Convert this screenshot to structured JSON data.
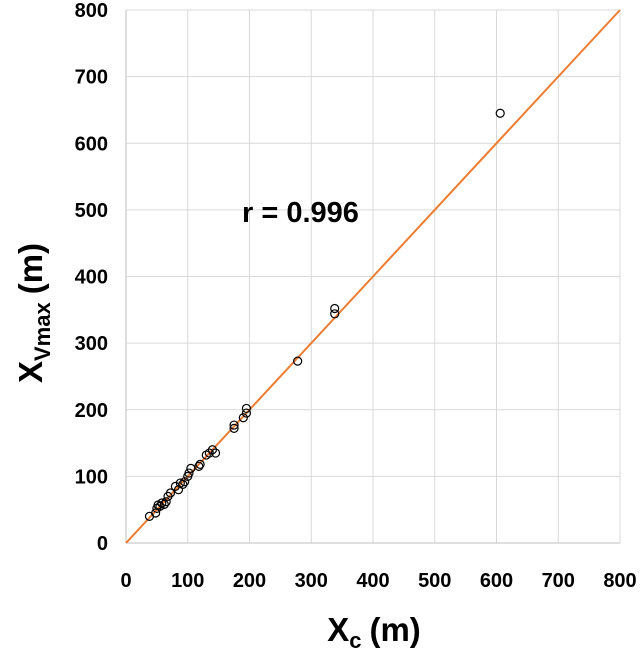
{
  "chart_data": {
    "type": "scatter",
    "xlabel": "X",
    "xlabel_sub": "c",
    "xlabel_unit": "(m)",
    "ylabel": "X",
    "ylabel_sub": "Vmax",
    "ylabel_unit": "(m)",
    "xlim": [
      0,
      800
    ],
    "ylim": [
      0,
      800
    ],
    "xticks": [
      "0",
      "100",
      "200",
      "300",
      "400",
      "500",
      "600",
      "700",
      "800"
    ],
    "yticks": [
      "0",
      "100",
      "200",
      "300",
      "400",
      "500",
      "600",
      "700",
      "800"
    ],
    "grid": true,
    "annotation": "r = 0.996",
    "fit_line": {
      "x": [
        0,
        800
      ],
      "y": [
        0,
        800
      ],
      "color": "#ED7D31"
    },
    "marker_color": "#000000",
    "points": [
      [
        38,
        40
      ],
      [
        48,
        45
      ],
      [
        50,
        52
      ],
      [
        52,
        57
      ],
      [
        55,
        55
      ],
      [
        58,
        60
      ],
      [
        62,
        58
      ],
      [
        65,
        62
      ],
      [
        68,
        70
      ],
      [
        72,
        75
      ],
      [
        80,
        85
      ],
      [
        85,
        80
      ],
      [
        88,
        90
      ],
      [
        92,
        88
      ],
      [
        95,
        92
      ],
      [
        100,
        100
      ],
      [
        102,
        105
      ],
      [
        105,
        112
      ],
      [
        118,
        115
      ],
      [
        120,
        118
      ],
      [
        130,
        132
      ],
      [
        135,
        135
      ],
      [
        140,
        140
      ],
      [
        145,
        135
      ],
      [
        175,
        172
      ],
      [
        175,
        177
      ],
      [
        190,
        188
      ],
      [
        195,
        195
      ],
      [
        195,
        202
      ],
      [
        278,
        273
      ],
      [
        338,
        344
      ],
      [
        338,
        352
      ],
      [
        606,
        645
      ]
    ]
  }
}
